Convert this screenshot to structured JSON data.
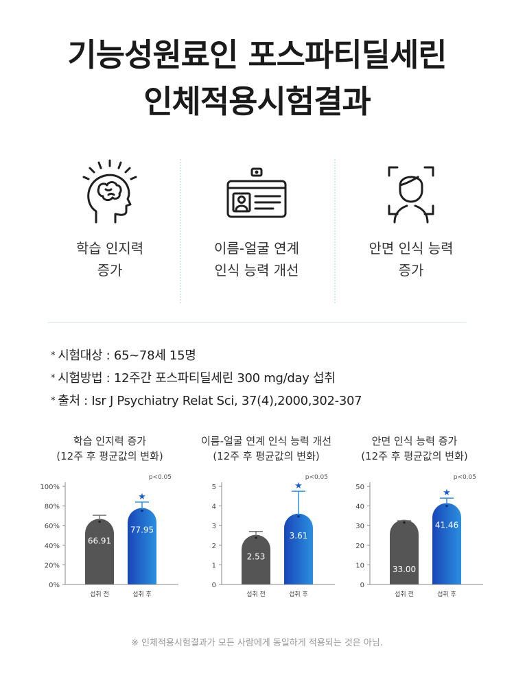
{
  "title": {
    "line1": "기능성원료인 포스파티딜세린",
    "line2": "인체적용시험결과"
  },
  "features": [
    {
      "icon": "brain-head-icon",
      "line1": "학습 인지력",
      "line2": "증가"
    },
    {
      "icon": "id-card-icon",
      "line1": "이름-얼굴 연계",
      "line2": "인식 능력 개선"
    },
    {
      "icon": "face-scan-icon",
      "line1": "안면 인식 능력",
      "line2": "증가"
    }
  ],
  "notes": [
    {
      "bullet": "*",
      "text": "시험대상 : 65~78세 15명"
    },
    {
      "bullet": "*",
      "text": "시험방법 : 12주간 포스파티딜세린 300 mg/day 섭취"
    },
    {
      "bullet": "*",
      "text": "출처 : Isr J Psychiatry Relat Sci, 37(4),2000,302-307"
    }
  ],
  "chart_data": [
    {
      "type": "bar",
      "title": "학습 인지력 증가",
      "subtitle": "(12주 후 평균값의 변화)",
      "significance": "p<0.05",
      "categories": [
        "섭취 전",
        "섭취 후"
      ],
      "values": [
        66.91,
        77.95
      ],
      "value_labels": [
        "66.91",
        "77.95"
      ],
      "error_upper": [
        70.5,
        84.0
      ],
      "ylim": [
        0,
        100
      ],
      "yticks": [
        0,
        20,
        40,
        60,
        80,
        100
      ],
      "ytick_labels": [
        "0%",
        "20%",
        "40%",
        "60%",
        "80%",
        "100%"
      ],
      "colors": [
        "#555555",
        "#1a5fcf"
      ],
      "grid": false
    },
    {
      "type": "bar",
      "title": "이름-얼굴 연계 인식 능력 개선",
      "subtitle": "(12주 후 평균값의 변화)",
      "significance": "p<0.05",
      "categories": [
        "섭취 전",
        "섭취 후"
      ],
      "values": [
        2.53,
        3.61
      ],
      "value_labels": [
        "2.53",
        "3.61"
      ],
      "error_upper": [
        2.7,
        4.75
      ],
      "ylim": [
        0,
        5
      ],
      "yticks": [
        0,
        1,
        2,
        3,
        4,
        5
      ],
      "ytick_labels": [
        "0",
        "1",
        "2",
        "3",
        "4",
        "5"
      ],
      "colors": [
        "#555555",
        "#1a5fcf"
      ],
      "grid": false
    },
    {
      "type": "bar",
      "title": "안면 인식 능력 증가",
      "subtitle": "(12주 후 평균값의 변화)",
      "significance": "p<0.05",
      "categories": [
        "섭취 전",
        "섭취 후"
      ],
      "values": [
        33.0,
        41.46
      ],
      "value_labels": [
        "33.00",
        "41.46"
      ],
      "error_upper": [
        32.5,
        44.0
      ],
      "ylim": [
        0,
        50
      ],
      "yticks": [
        0,
        10,
        20,
        30,
        40,
        50
      ],
      "ytick_labels": [
        "0",
        "10",
        "20",
        "30",
        "40",
        "50"
      ],
      "colors": [
        "#555555",
        "#1a5fcf"
      ],
      "grid": false
    }
  ],
  "footnote": "※ 인체적용시험결과가 모든 사람에게 동일하게 적용되는 것은 아님."
}
